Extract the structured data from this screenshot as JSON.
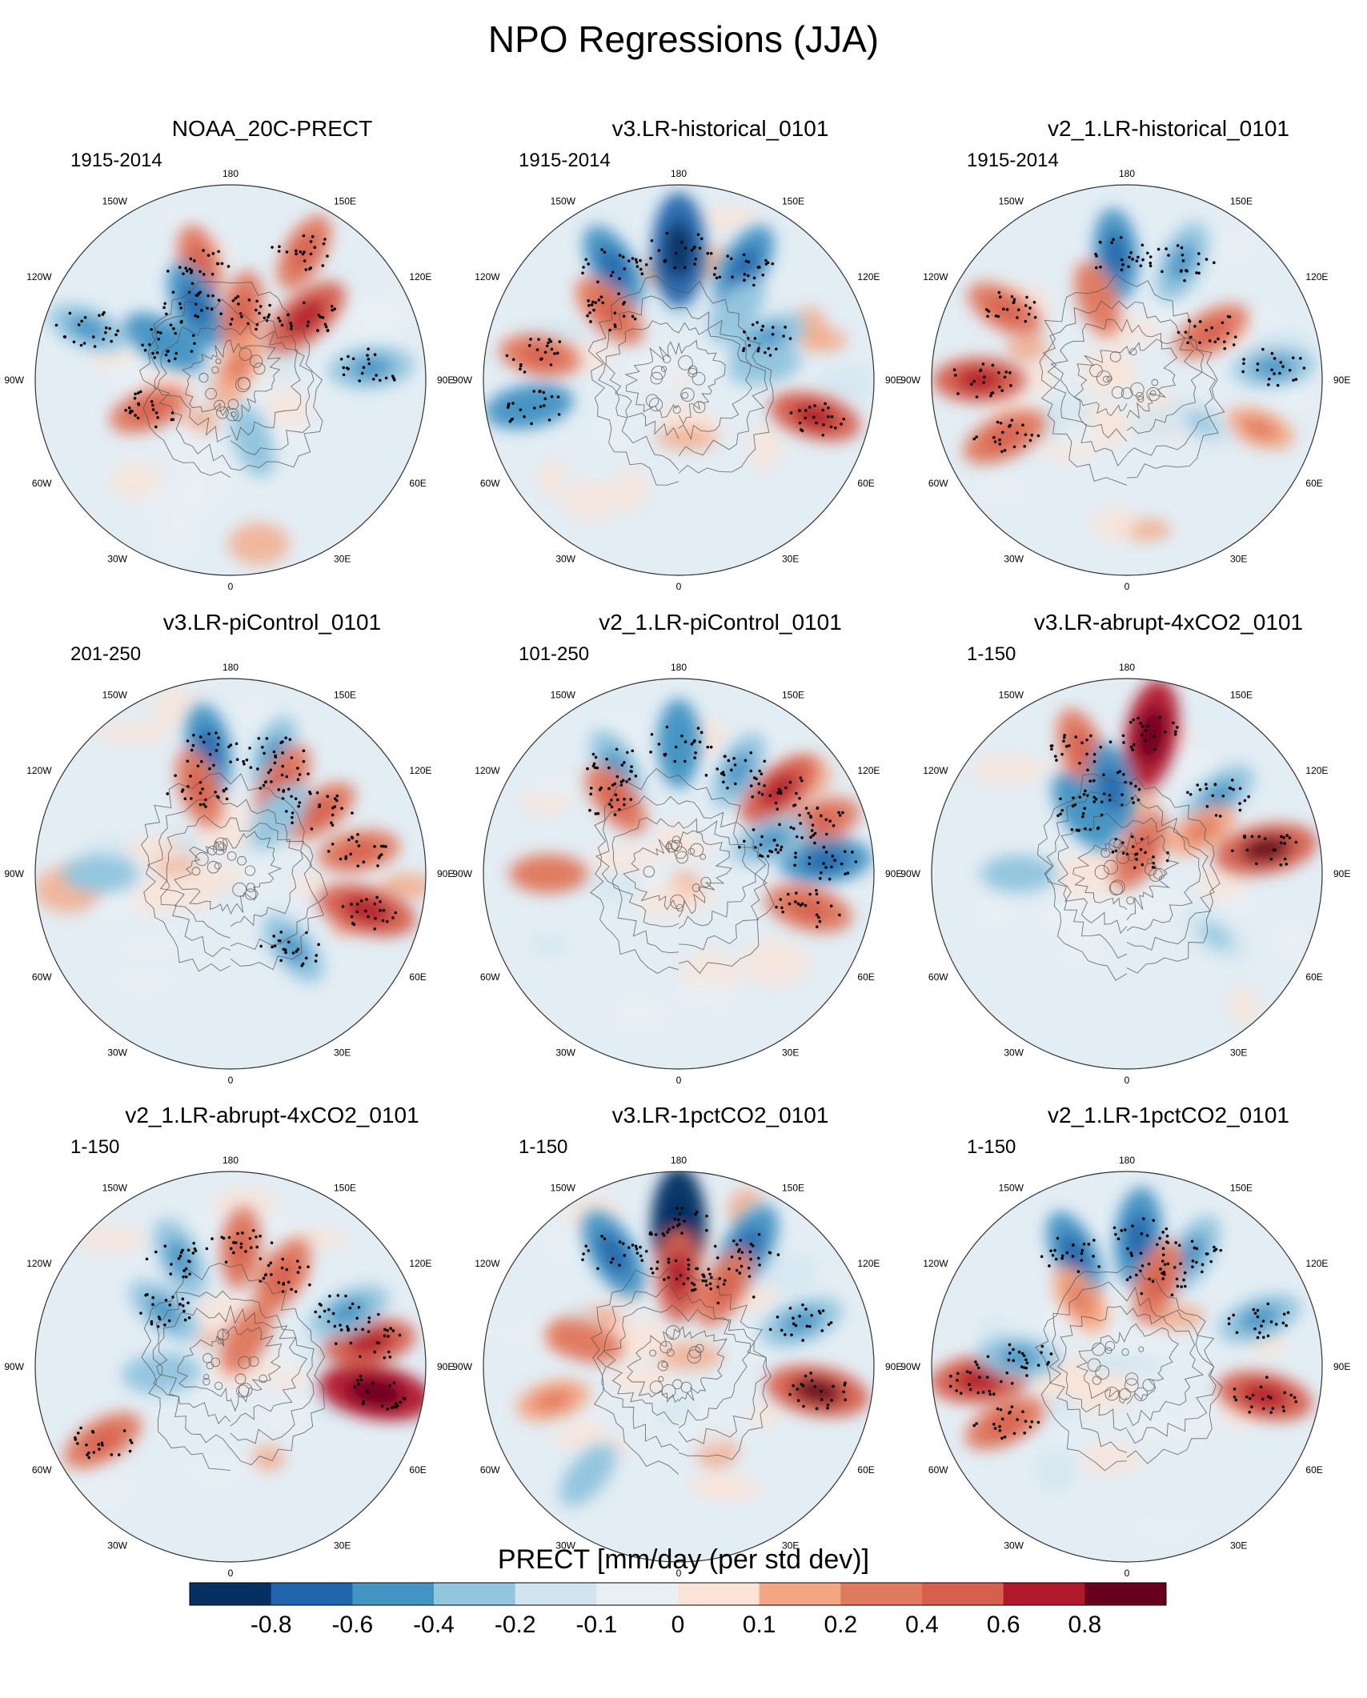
{
  "title": "NPO Regressions (JJA)",
  "panels": [
    {
      "title": "NOAA_20C-PRECT",
      "period": "1915-2014"
    },
    {
      "title": "v3.LR-historical_0101",
      "period": "1915-2014"
    },
    {
      "title": "v2_1.LR-historical_0101",
      "period": "1915-2014"
    },
    {
      "title": "v3.LR-piControl_0101",
      "period": "201-250"
    },
    {
      "title": "v2_1.LR-piControl_0101",
      "period": "101-250"
    },
    {
      "title": "v3.LR-abrupt-4xCO2_0101",
      "period": "1-150"
    },
    {
      "title": "v2_1.LR-abrupt-4xCO2_0101",
      "period": "1-150"
    },
    {
      "title": "v3.LR-1pctCO2_0101",
      "period": "1-150"
    },
    {
      "title": "v2_1.LR-1pctCO2_0101",
      "period": "1-150"
    }
  ],
  "lon_labels": [
    "180",
    "150E",
    "120E",
    "90E",
    "60E",
    "30E",
    "0",
    "30W",
    "60W",
    "90W",
    "120W",
    "150W"
  ],
  "colorbar": {
    "title": "PRECT [mm/day (per std dev)]",
    "ticks": [
      "-0.8",
      "-0.6",
      "-0.4",
      "-0.2",
      "-0.1",
      "0",
      "0.1",
      "0.2",
      "0.4",
      "0.6",
      "0.8"
    ],
    "colors": [
      "#053061",
      "#2166ac",
      "#4393c3",
      "#92c5de",
      "#d1e5f0",
      "#e8f0f5",
      "#fbe3d7",
      "#f4a582",
      "#e07a5f",
      "#d6604d",
      "#b2182b",
      "#67001f"
    ]
  },
  "chart_data": [
    {
      "type": "heatmap",
      "title": "NOAA_20C-PRECT",
      "subtitle": "1915-2014",
      "projection": "north-polar-stereographic",
      "variable": "PRECT",
      "units": "mm/day (per std dev)",
      "levels": [
        -0.8,
        -0.6,
        -0.4,
        -0.2,
        -0.1,
        0,
        0.1,
        0.2,
        0.4,
        0.6,
        0.8
      ],
      "features": [
        {
          "lon": 195,
          "lat": 35,
          "value": 0.3
        },
        {
          "lon": 150,
          "lat": 22,
          "value": 0.3
        },
        {
          "lon": 205,
          "lat": 52,
          "value": -0.45
        },
        {
          "lon": 240,
          "lat": 55,
          "value": -0.4
        },
        {
          "lon": 170,
          "lat": 58,
          "value": 0.3
        },
        {
          "lon": 130,
          "lat": 45,
          "value": 0.5
        },
        {
          "lon": 95,
          "lat": 25,
          "value": -0.35
        },
        {
          "lon": 250,
          "lat": 20,
          "value": -0.3
        },
        {
          "lon": 290,
          "lat": 50,
          "value": 0.3
        },
        {
          "lon": 150,
          "lat": 82,
          "value": 0.15
        },
        {
          "lon": 20,
          "lat": 60,
          "value": -0.2
        }
      ]
    },
    {
      "type": "heatmap",
      "title": "v3.LR-historical_0101",
      "subtitle": "1915-2014",
      "projection": "north-polar-stereographic",
      "variable": "PRECT",
      "units": "mm/day (per std dev)",
      "levels": [
        -0.8,
        -0.6,
        -0.4,
        -0.2,
        -0.1,
        0,
        0.1,
        0.2,
        0.4,
        0.6,
        0.8
      ],
      "features": [
        {
          "lon": 180,
          "lat": 30,
          "value": -0.75
        },
        {
          "lon": 210,
          "lat": 30,
          "value": -0.45
        },
        {
          "lon": 150,
          "lat": 30,
          "value": -0.45
        },
        {
          "lon": 225,
          "lat": 45,
          "value": 0.35
        },
        {
          "lon": 260,
          "lat": 25,
          "value": 0.3
        },
        {
          "lon": 280,
          "lat": 20,
          "value": -0.4
        },
        {
          "lon": 75,
          "lat": 25,
          "value": 0.45
        },
        {
          "lon": 115,
          "lat": 45,
          "value": -0.3
        },
        {
          "lon": 100,
          "lat": 50,
          "value": -0.2
        },
        {
          "lon": 140,
          "lat": 48,
          "value": -0.2
        }
      ]
    },
    {
      "type": "heatmap",
      "title": "v2_1.LR-historical_0101",
      "subtitle": "1915-2014",
      "projection": "north-polar-stereographic",
      "variable": "PRECT",
      "units": "mm/day (per std dev)",
      "levels": [
        -0.8,
        -0.6,
        -0.4,
        -0.2,
        -0.1,
        0,
        0.1,
        0.2,
        0.4,
        0.6,
        0.8
      ],
      "features": [
        {
          "lon": 185,
          "lat": 32,
          "value": -0.45
        },
        {
          "lon": 155,
          "lat": 30,
          "value": -0.35
        },
        {
          "lon": 270,
          "lat": 22,
          "value": 0.45
        },
        {
          "lon": 295,
          "lat": 28,
          "value": 0.4
        },
        {
          "lon": 240,
          "lat": 25,
          "value": 0.3
        },
        {
          "lon": 200,
          "lat": 50,
          "value": 0.25
        },
        {
          "lon": 120,
          "lat": 45,
          "value": 0.3
        },
        {
          "lon": 95,
          "lat": 22,
          "value": -0.3
        },
        {
          "lon": 70,
          "lat": 25,
          "value": 0.15
        },
        {
          "lon": 60,
          "lat": 50,
          "value": -0.15
        }
      ]
    },
    {
      "type": "heatmap",
      "title": "v3.LR-piControl_0101",
      "subtitle": "201-250",
      "projection": "north-polar-stereographic",
      "variable": "PRECT",
      "units": "mm/day (per std dev)",
      "levels": [
        -0.8,
        -0.6,
        -0.4,
        -0.2,
        -0.1,
        0,
        0.1,
        0.2,
        0.4,
        0.6,
        0.8
      ],
      "features": [
        {
          "lon": 190,
          "lat": 32,
          "value": -0.45
        },
        {
          "lon": 160,
          "lat": 32,
          "value": -0.3
        },
        {
          "lon": 150,
          "lat": 42,
          "value": 0.35
        },
        {
          "lon": 125,
          "lat": 40,
          "value": 0.3
        },
        {
          "lon": 200,
          "lat": 48,
          "value": 0.3
        },
        {
          "lon": 140,
          "lat": 55,
          "value": -0.25
        },
        {
          "lon": 100,
          "lat": 30,
          "value": 0.3
        },
        {
          "lon": 75,
          "lat": 25,
          "value": 0.55
        },
        {
          "lon": 40,
          "lat": 45,
          "value": -0.3
        },
        {
          "lon": 270,
          "lat": 30,
          "value": -0.2
        }
      ]
    },
    {
      "type": "heatmap",
      "title": "v2_1.LR-piControl_0101",
      "subtitle": "101-250",
      "projection": "north-polar-stereographic",
      "variable": "PRECT",
      "units": "mm/day (per std dev)",
      "levels": [
        -0.8,
        -0.6,
        -0.4,
        -0.2,
        -0.1,
        0,
        0.1,
        0.2,
        0.4,
        0.6,
        0.8
      ],
      "features": [
        {
          "lon": 180,
          "lat": 30,
          "value": -0.4
        },
        {
          "lon": 150,
          "lat": 35,
          "value": -0.3
        },
        {
          "lon": 210,
          "lat": 33,
          "value": -0.3
        },
        {
          "lon": 130,
          "lat": 30,
          "value": 0.45
        },
        {
          "lon": 110,
          "lat": 22,
          "value": 0.4
        },
        {
          "lon": 95,
          "lat": 22,
          "value": -0.45
        },
        {
          "lon": 110,
          "lat": 45,
          "value": -0.3
        },
        {
          "lon": 220,
          "lat": 45,
          "value": 0.3
        },
        {
          "lon": 270,
          "lat": 30,
          "value": 0.25
        },
        {
          "lon": 75,
          "lat": 28,
          "value": 0.4
        }
      ]
    },
    {
      "type": "heatmap",
      "title": "v3.LR-abrupt-4xCO2_0101",
      "subtitle": "1-150",
      "projection": "north-polar-stereographic",
      "variable": "PRECT",
      "units": "mm/day (per std dev)",
      "levels": [
        -0.8,
        -0.6,
        -0.4,
        -0.2,
        -0.1,
        0,
        0.1,
        0.2,
        0.4,
        0.6,
        0.8
      ],
      "features": [
        {
          "lon": 170,
          "lat": 25,
          "value": 0.7
        },
        {
          "lon": 200,
          "lat": 30,
          "value": 0.4
        },
        {
          "lon": 190,
          "lat": 50,
          "value": -0.45
        },
        {
          "lon": 215,
          "lat": 55,
          "value": -0.4
        },
        {
          "lon": 130,
          "lat": 35,
          "value": -0.35
        },
        {
          "lon": 100,
          "lat": 25,
          "value": 0.6
        },
        {
          "lon": 120,
          "lat": 50,
          "value": 0.2
        },
        {
          "lon": 150,
          "lat": 78,
          "value": 0.35
        },
        {
          "lon": 270,
          "lat": 40,
          "value": -0.2
        },
        {
          "lon": 55,
          "lat": 40,
          "value": -0.15
        }
      ]
    },
    {
      "type": "heatmap",
      "title": "v2_1.LR-abrupt-4xCO2_0101",
      "subtitle": "1-150",
      "projection": "north-polar-stereographic",
      "variable": "PRECT",
      "units": "mm/day (per std dev)",
      "levels": [
        -0.8,
        -0.6,
        -0.4,
        -0.2,
        -0.1,
        0,
        0.1,
        0.2,
        0.4,
        0.6,
        0.8
      ],
      "features": [
        {
          "lon": 205,
          "lat": 35,
          "value": -0.35
        },
        {
          "lon": 230,
          "lat": 50,
          "value": -0.3
        },
        {
          "lon": 175,
          "lat": 35,
          "value": 0.3
        },
        {
          "lon": 150,
          "lat": 42,
          "value": 0.35
        },
        {
          "lon": 80,
          "lat": 22,
          "value": 0.75
        },
        {
          "lon": 100,
          "lat": 25,
          "value": 0.45
        },
        {
          "lon": 115,
          "lat": 30,
          "value": -0.35
        },
        {
          "lon": 275,
          "lat": 58,
          "value": -0.25
        },
        {
          "lon": 300,
          "lat": 22,
          "value": 0.35
        },
        {
          "lon": 150,
          "lat": 75,
          "value": 0.25
        }
      ]
    },
    {
      "type": "heatmap",
      "title": "v3.LR-1pctCO2_0101",
      "subtitle": "1-150",
      "projection": "north-polar-stereographic",
      "variable": "PRECT",
      "units": "mm/day (per std dev)",
      "levels": [
        -0.8,
        -0.6,
        -0.4,
        -0.2,
        -0.1,
        0,
        0.1,
        0.2,
        0.4,
        0.6,
        0.8
      ],
      "features": [
        {
          "lon": 180,
          "lat": 25,
          "value": -0.8
        },
        {
          "lon": 150,
          "lat": 28,
          "value": -0.55
        },
        {
          "lon": 210,
          "lat": 30,
          "value": -0.5
        },
        {
          "lon": 180,
          "lat": 48,
          "value": 0.45
        },
        {
          "lon": 150,
          "lat": 48,
          "value": 0.35
        },
        {
          "lon": 80,
          "lat": 25,
          "value": 0.6
        },
        {
          "lon": 110,
          "lat": 30,
          "value": -0.35
        },
        {
          "lon": 285,
          "lat": 30,
          "value": 0.2
        },
        {
          "lon": 255,
          "lat": 45,
          "value": 0.25
        },
        {
          "lon": 320,
          "lat": 25,
          "value": -0.2
        }
      ]
    },
    {
      "type": "heatmap",
      "title": "v2_1.LR-1pctCO2_0101",
      "subtitle": "1-150",
      "projection": "north-polar-stereographic",
      "variable": "PRECT",
      "units": "mm/day (per std dev)",
      "levels": [
        -0.8,
        -0.6,
        -0.4,
        -0.2,
        -0.1,
        0,
        0.1,
        0.2,
        0.4,
        0.6,
        0.8
      ],
      "features": [
        {
          "lon": 175,
          "lat": 30,
          "value": -0.55
        },
        {
          "lon": 205,
          "lat": 33,
          "value": -0.45
        },
        {
          "lon": 150,
          "lat": 30,
          "value": -0.35
        },
        {
          "lon": 160,
          "lat": 48,
          "value": 0.35
        },
        {
          "lon": 110,
          "lat": 25,
          "value": -0.35
        },
        {
          "lon": 78,
          "lat": 25,
          "value": 0.5
        },
        {
          "lon": 275,
          "lat": 22,
          "value": 0.55
        },
        {
          "lon": 295,
          "lat": 28,
          "value": 0.35
        },
        {
          "lon": 265,
          "lat": 40,
          "value": -0.3
        },
        {
          "lon": 215,
          "lat": 52,
          "value": 0.2
        }
      ]
    }
  ]
}
